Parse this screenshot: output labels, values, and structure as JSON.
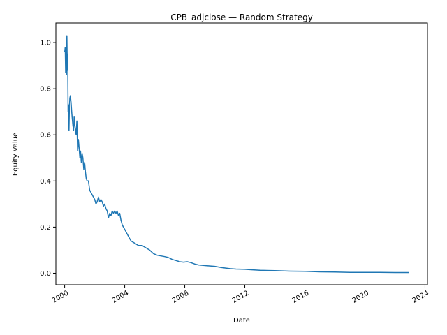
{
  "chart_data": {
    "type": "line",
    "title": "CPB_adjclose — Random Strategy",
    "xlabel": "Date",
    "ylabel": "Equity Value",
    "xlim": [
      "1999-06-01",
      "2024-03-01"
    ],
    "ylim": [
      -0.05,
      1.085
    ],
    "grid": false,
    "legend": "none",
    "x_ticks": [
      "2000",
      "2004",
      "2008",
      "2012",
      "2016",
      "2020",
      "2024"
    ],
    "y_ticks": [
      "0.0",
      "0.2",
      "0.4",
      "0.6",
      "0.8",
      "1.0"
    ],
    "series": [
      {
        "color": "#1f77b4",
        "x": [
          "2000-01-03",
          "2000-01-15",
          "2000-01-25",
          "2000-02-05",
          "2000-02-15",
          "2000-02-25",
          "2000-03-05",
          "2000-03-15",
          "2000-03-25",
          "2000-04-05",
          "2000-04-15",
          "2000-04-25",
          "2000-05-05",
          "2000-05-20",
          "2000-06-05",
          "2000-06-20",
          "2000-07-05",
          "2000-07-20",
          "2000-08-05",
          "2000-08-20",
          "2000-09-05",
          "2000-09-20",
          "2000-10-05",
          "2000-10-25",
          "2000-11-10",
          "2000-12-01",
          "2000-12-15",
          "2001-01-05",
          "2001-01-20",
          "2001-02-10",
          "2001-03-01",
          "2001-03-20",
          "2001-04-10",
          "2001-05-01",
          "2001-05-20",
          "2001-06-10",
          "2001-07-01",
          "2001-08-01",
          "2001-09-01",
          "2001-10-01",
          "2001-11-01",
          "2001-12-01",
          "2002-01-01",
          "2002-02-01",
          "2002-03-01",
          "2002-04-01",
          "2002-05-01",
          "2002-06-01",
          "2002-07-01",
          "2002-08-01",
          "2002-09-01",
          "2002-10-01",
          "2002-11-01",
          "2002-12-01",
          "2003-01-01",
          "2003-02-01",
          "2003-03-01",
          "2003-04-01",
          "2003-05-01",
          "2003-06-01",
          "2003-07-01",
          "2003-08-01",
          "2003-09-01",
          "2003-10-01",
          "2003-11-01",
          "2003-12-01",
          "2004-01-01",
          "2004-03-01",
          "2004-06-01",
          "2004-09-01",
          "2004-12-01",
          "2005-03-01",
          "2005-06-01",
          "2005-09-01",
          "2005-12-01",
          "2006-03-01",
          "2006-06-01",
          "2006-09-01",
          "2006-12-01",
          "2007-03-01",
          "2007-06-01",
          "2007-09-01",
          "2007-12-01",
          "2008-03-01",
          "2008-06-01",
          "2008-09-01",
          "2008-12-01",
          "2009-06-01",
          "2010-01-01",
          "2010-06-01",
          "2011-01-01",
          "2011-06-01",
          "2012-01-01",
          "2012-06-01",
          "2013-01-01",
          "2014-01-01",
          "2015-01-01",
          "2016-01-01",
          "2017-01-01",
          "2018-01-01",
          "2019-01-01",
          "2020-01-01",
          "2021-01-01",
          "2022-01-01",
          "2022-12-01"
        ],
        "y": [
          0.96,
          0.98,
          0.87,
          0.95,
          0.86,
          1.03,
          0.88,
          0.95,
          0.7,
          0.73,
          0.62,
          0.72,
          0.76,
          0.77,
          0.74,
          0.7,
          0.67,
          0.64,
          0.62,
          0.68,
          0.64,
          0.62,
          0.6,
          0.66,
          0.53,
          0.58,
          0.55,
          0.5,
          0.53,
          0.48,
          0.52,
          0.5,
          0.45,
          0.48,
          0.44,
          0.41,
          0.4,
          0.4,
          0.36,
          0.35,
          0.34,
          0.33,
          0.32,
          0.3,
          0.31,
          0.33,
          0.31,
          0.32,
          0.31,
          0.29,
          0.3,
          0.28,
          0.27,
          0.24,
          0.26,
          0.25,
          0.27,
          0.26,
          0.27,
          0.26,
          0.27,
          0.25,
          0.26,
          0.23,
          0.21,
          0.2,
          0.19,
          0.17,
          0.14,
          0.13,
          0.12,
          0.12,
          0.11,
          0.1,
          0.085,
          0.078,
          0.075,
          0.072,
          0.068,
          0.06,
          0.055,
          0.05,
          0.048,
          0.05,
          0.046,
          0.04,
          0.036,
          0.033,
          0.03,
          0.025,
          0.02,
          0.018,
          0.017,
          0.015,
          0.013,
          0.011,
          0.009,
          0.008,
          0.006,
          0.005,
          0.004,
          0.004,
          0.004,
          0.003,
          0.003
        ]
      }
    ]
  }
}
